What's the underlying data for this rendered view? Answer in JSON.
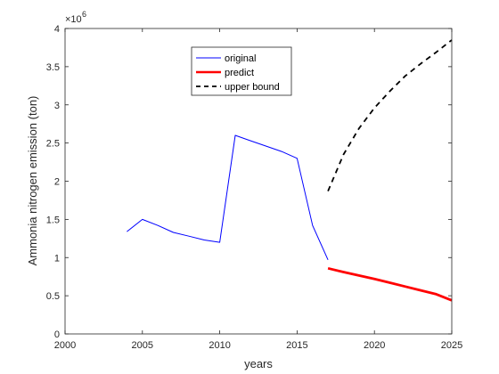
{
  "chart_data": {
    "type": "line",
    "xlabel": "years",
    "ylabel": "Ammonia nitrogen emission (ton)",
    "exponent_label": "×10",
    "exponent_power": "6",
    "xlim": [
      2000,
      2025
    ],
    "ylim": [
      0,
      4000000
    ],
    "grid": false,
    "legend_position": "top-center",
    "x_ticks": [
      2000,
      2005,
      2010,
      2015,
      2020,
      2025
    ],
    "x_tick_labels": [
      "2000",
      "2005",
      "2010",
      "2015",
      "2020",
      "2025"
    ],
    "y_ticks": [
      0,
      500000,
      1000000,
      1500000,
      2000000,
      2500000,
      3000000,
      3500000,
      4000000
    ],
    "y_tick_labels": [
      "0",
      "0.5",
      "1",
      "1.5",
      "2",
      "2.5",
      "3",
      "3.5",
      "4"
    ],
    "series": [
      {
        "name": "original",
        "color": "#0000ff",
        "line_style": "solid",
        "line_width": "thin",
        "x": [
          2004,
          2005,
          2006,
          2007,
          2008,
          2009,
          2010,
          2011,
          2012,
          2013,
          2014,
          2015,
          2016,
          2017
        ],
        "y": [
          1340000,
          1500000,
          1420000,
          1330000,
          1280000,
          1230000,
          1200000,
          2600000,
          2530000,
          2460000,
          2390000,
          2300000,
          1420000,
          970000
        ]
      },
      {
        "name": "predict",
        "color": "#ff0000",
        "line_style": "solid",
        "line_width": "thick",
        "x": [
          2017,
          2018,
          2019,
          2020,
          2021,
          2022,
          2023,
          2024,
          2025
        ],
        "y": [
          860000,
          810000,
          765000,
          720000,
          670000,
          620000,
          570000,
          520000,
          440000
        ]
      },
      {
        "name": "upper bound",
        "color": "#000000",
        "line_style": "dashed",
        "line_width": "medium",
        "x": [
          2017,
          2018,
          2019,
          2020,
          2021,
          2022,
          2023,
          2024,
          2025
        ],
        "y": [
          1870000,
          2350000,
          2690000,
          2960000,
          3180000,
          3380000,
          3540000,
          3690000,
          3850000
        ]
      }
    ]
  }
}
